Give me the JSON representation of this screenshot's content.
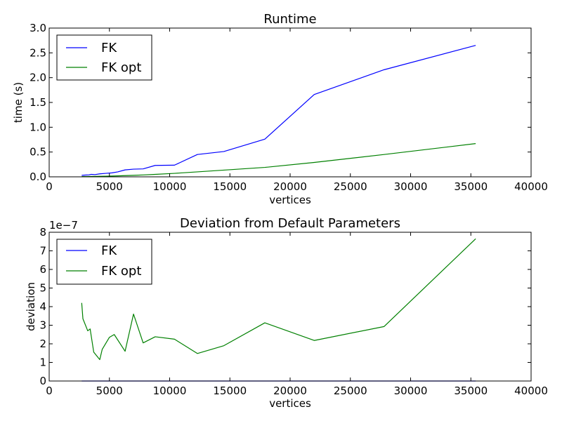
{
  "chart_data": [
    {
      "type": "line",
      "title": "Runtime",
      "xlabel": "vertices",
      "ylabel": "time (s)",
      "xlim": [
        0,
        40000
      ],
      "ylim": [
        0,
        3.0
      ],
      "xticks": [
        0,
        5000,
        10000,
        15000,
        20000,
        25000,
        30000,
        35000,
        40000
      ],
      "xtick_labels": [
        "0",
        "5000",
        "10000",
        "15000",
        "20000",
        "25000",
        "30000",
        "35000",
        "40000"
      ],
      "yticks": [
        0,
        0.5,
        1.0,
        1.5,
        2.0,
        2.5,
        3.0
      ],
      "ytick_labels": [
        "0.0",
        "0.5",
        "1.0",
        "1.5",
        "2.0",
        "2.5",
        "3.0"
      ],
      "grid": false,
      "legend_position": "top-left",
      "series": [
        {
          "name": "FK",
          "color": "#0000ff",
          "x": [
            2700,
            3000,
            3300,
            3500,
            3800,
            4200,
            4700,
            5200,
            5700,
            6300,
            7000,
            7800,
            8800,
            10400,
            12300,
            14500,
            17900,
            22000,
            27800,
            35400
          ],
          "y": [
            0.03,
            0.035,
            0.04,
            0.05,
            0.045,
            0.06,
            0.07,
            0.08,
            0.1,
            0.14,
            0.155,
            0.16,
            0.23,
            0.235,
            0.45,
            0.51,
            0.76,
            1.66,
            2.16,
            2.65
          ]
        },
        {
          "name": "FK opt",
          "color": "#008000",
          "x": [
            2700,
            3000,
            3300,
            3500,
            3800,
            4200,
            4700,
            5200,
            5700,
            6300,
            7000,
            7800,
            8800,
            10400,
            12300,
            14500,
            17900,
            22000,
            27800,
            35400
          ],
          "y": [
            0.005,
            0.006,
            0.007,
            0.008,
            0.009,
            0.011,
            0.013,
            0.016,
            0.019,
            0.025,
            0.03,
            0.038,
            0.05,
            0.07,
            0.1,
            0.135,
            0.19,
            0.29,
            0.45,
            0.67
          ]
        }
      ]
    },
    {
      "type": "line",
      "title": "Deviation from Default Parameters",
      "xlabel": "vertices",
      "ylabel": "deviation",
      "y_offset_label": "1e−7",
      "xlim": [
        0,
        40000
      ],
      "ylim": [
        0,
        8
      ],
      "y_scale_factor": 1e-07,
      "xticks": [
        0,
        5000,
        10000,
        15000,
        20000,
        25000,
        30000,
        35000,
        40000
      ],
      "xtick_labels": [
        "0",
        "5000",
        "10000",
        "15000",
        "20000",
        "25000",
        "30000",
        "35000",
        "40000"
      ],
      "yticks": [
        0,
        1,
        2,
        3,
        4,
        5,
        6,
        7,
        8
      ],
      "ytick_labels": [
        "0",
        "1",
        "2",
        "3",
        "4",
        "5",
        "6",
        "7",
        "8"
      ],
      "grid": false,
      "legend_position": "top-left",
      "series": [
        {
          "name": "FK",
          "color": "#0000ff",
          "x": [
            2700,
            35400
          ],
          "y": [
            0,
            0
          ]
        },
        {
          "name": "FK opt",
          "color": "#008000",
          "x": [
            2700,
            2800,
            3200,
            3400,
            3700,
            4200,
            4400,
            5000,
            5400,
            6300,
            7000,
            7800,
            8800,
            10400,
            12300,
            14500,
            17900,
            22000,
            27800,
            35400
          ],
          "y": [
            4.2,
            3.35,
            2.7,
            2.8,
            1.55,
            1.15,
            1.7,
            2.35,
            2.5,
            1.6,
            3.6,
            2.05,
            2.38,
            2.25,
            1.48,
            1.9,
            3.13,
            2.18,
            2.93,
            7.65
          ]
        }
      ]
    }
  ]
}
